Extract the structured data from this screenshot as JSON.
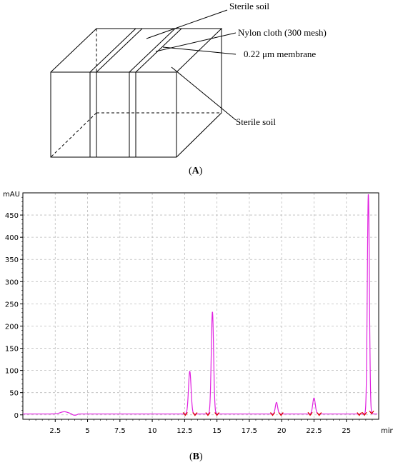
{
  "panel_a": {
    "labels": {
      "top_soil": "Sterile soil",
      "nylon": "Nylon cloth (300 mesh)",
      "membrane": "0.22 μm membrane",
      "right_soil": "Sterile soil"
    },
    "caption": "A"
  },
  "panel_b": {
    "caption": "B"
  },
  "chart_data": {
    "type": "line",
    "ylabel": "mAU",
    "xlabel": "min",
    "xlim": [
      0,
      27.5
    ],
    "ylim": [
      -10,
      500
    ],
    "x_ticks": [
      {
        "v": 2.5,
        "label": "2.5"
      },
      {
        "v": 5,
        "label": "5"
      },
      {
        "v": 7.5,
        "label": "7.5"
      },
      {
        "v": 10,
        "label": "10"
      },
      {
        "v": 12.5,
        "label": "12.5"
      },
      {
        "v": 15,
        "label": "15"
      },
      {
        "v": 17.5,
        "label": "17.5"
      },
      {
        "v": 20,
        "label": "20"
      },
      {
        "v": 22.5,
        "label": "22.5"
      },
      {
        "v": 25,
        "label": "25"
      }
    ],
    "y_ticks": [
      0,
      50,
      100,
      150,
      200,
      250,
      300,
      350,
      400,
      450
    ],
    "grid": true,
    "baseline": 2,
    "line_color": "#e020e0",
    "marker_color": "#dd0000",
    "peaks": [
      {
        "x": 3.2,
        "h": 5,
        "w": 0.3
      },
      {
        "x": 12.9,
        "h": 96,
        "w": 0.1
      },
      {
        "x": 14.65,
        "h": 230,
        "w": 0.09
      },
      {
        "x": 19.6,
        "h": 26,
        "w": 0.09
      },
      {
        "x": 22.5,
        "h": 36,
        "w": 0.1
      },
      {
        "x": 26.7,
        "h": 495,
        "w": 0.08
      }
    ],
    "markers": [
      {
        "x": 12.55
      },
      {
        "x": 13.3
      },
      {
        "x": 14.3
      },
      {
        "x": 15.0
      },
      {
        "x": 19.3
      },
      {
        "x": 19.95
      },
      {
        "x": 22.2
      },
      {
        "x": 22.9
      },
      {
        "x": 26.0
      },
      {
        "x": 26.4
      },
      {
        "x": 26.95
      }
    ]
  }
}
